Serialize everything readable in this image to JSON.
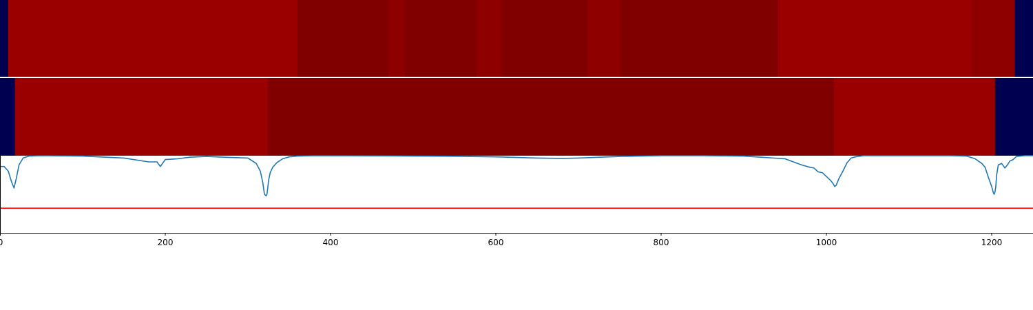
{
  "chart_data": [
    {
      "type": "heatmap",
      "name": "segmentation-track-1",
      "xlim": [
        0,
        1250
      ],
      "segments": [
        {
          "start": 0,
          "end": 10,
          "color": "#000050"
        },
        {
          "start": 10,
          "end": 360,
          "color": "#9b0000"
        },
        {
          "start": 360,
          "end": 470,
          "color": "#800000"
        },
        {
          "start": 470,
          "end": 490,
          "color": "#8e0000"
        },
        {
          "start": 490,
          "end": 577,
          "color": "#800000"
        },
        {
          "start": 577,
          "end": 607,
          "color": "#8e0000"
        },
        {
          "start": 607,
          "end": 711,
          "color": "#800000"
        },
        {
          "start": 711,
          "end": 751,
          "color": "#8e0000"
        },
        {
          "start": 751,
          "end": 941,
          "color": "#800000"
        },
        {
          "start": 941,
          "end": 1175,
          "color": "#9b0000"
        },
        {
          "start": 1175,
          "end": 1228,
          "color": "#8e0000"
        },
        {
          "start": 1228,
          "end": 1250,
          "color": "#000050"
        }
      ]
    },
    {
      "type": "heatmap",
      "name": "segmentation-track-2",
      "xlim": [
        0,
        1250
      ],
      "segments": [
        {
          "start": 0,
          "end": 18,
          "color": "#000050"
        },
        {
          "start": 18,
          "end": 324,
          "color": "#9b0000"
        },
        {
          "start": 324,
          "end": 1009,
          "color": "#800000"
        },
        {
          "start": 1009,
          "end": 1204,
          "color": "#9b0000"
        },
        {
          "start": 1204,
          "end": 1250,
          "color": "#000050"
        }
      ]
    },
    {
      "type": "line",
      "name": "signal-plot",
      "xlim": [
        0,
        1250
      ],
      "ylim": [
        0,
        1
      ],
      "threshold": 0.32,
      "series": [
        {
          "name": "signal",
          "color": "#1f77b4",
          "x": [
            0,
            5,
            10,
            14,
            17,
            20,
            23,
            28,
            35,
            50,
            100,
            150,
            180,
            190,
            194,
            200,
            215,
            230,
            250,
            270,
            300,
            310,
            315,
            318,
            320,
            322,
            323,
            324,
            325,
            327,
            330,
            335,
            342,
            350,
            360,
            380,
            450,
            550,
            600,
            650,
            680,
            700,
            750,
            800,
            850,
            900,
            950,
            960,
            970,
            980,
            985,
            990,
            995,
            1000,
            1005,
            1008,
            1010,
            1012,
            1015,
            1020,
            1025,
            1030,
            1035,
            1045,
            1100,
            1150,
            1170,
            1180,
            1188,
            1192,
            1196,
            1200,
            1202,
            1203,
            1204,
            1205,
            1206,
            1208,
            1212,
            1216,
            1219,
            1222,
            1226,
            1230,
            1240,
            1250
          ],
          "y": [
            0.86,
            0.86,
            0.8,
            0.66,
            0.58,
            0.72,
            0.88,
            0.97,
            0.995,
            1.0,
            0.995,
            0.97,
            0.92,
            0.92,
            0.86,
            0.95,
            0.96,
            0.98,
            0.99,
            0.98,
            0.97,
            0.9,
            0.8,
            0.65,
            0.5,
            0.48,
            0.5,
            0.58,
            0.68,
            0.78,
            0.85,
            0.91,
            0.96,
            0.985,
            0.995,
            1.0,
            0.998,
            0.993,
            0.985,
            0.97,
            0.965,
            0.97,
            0.99,
            1.0,
            1.0,
            0.995,
            0.96,
            0.92,
            0.88,
            0.85,
            0.84,
            0.79,
            0.78,
            0.73,
            0.68,
            0.64,
            0.6,
            0.62,
            0.7,
            0.8,
            0.91,
            0.97,
            0.985,
            1.0,
            1.0,
            1.0,
            0.995,
            0.96,
            0.9,
            0.85,
            0.72,
            0.6,
            0.52,
            0.5,
            0.53,
            0.6,
            0.75,
            0.88,
            0.9,
            0.84,
            0.88,
            0.93,
            0.95,
            0.99,
            1.0,
            1.0
          ]
        },
        {
          "name": "threshold",
          "color": "#ff0000",
          "x": [
            0,
            1250
          ],
          "y": [
            0.32,
            0.32
          ]
        }
      ],
      "xticks": [
        0,
        200,
        400,
        600,
        800,
        1000,
        1200
      ],
      "xtick_labels": [
        "0",
        "200",
        "400",
        "600",
        "800",
        "1000",
        "1200"
      ]
    }
  ]
}
